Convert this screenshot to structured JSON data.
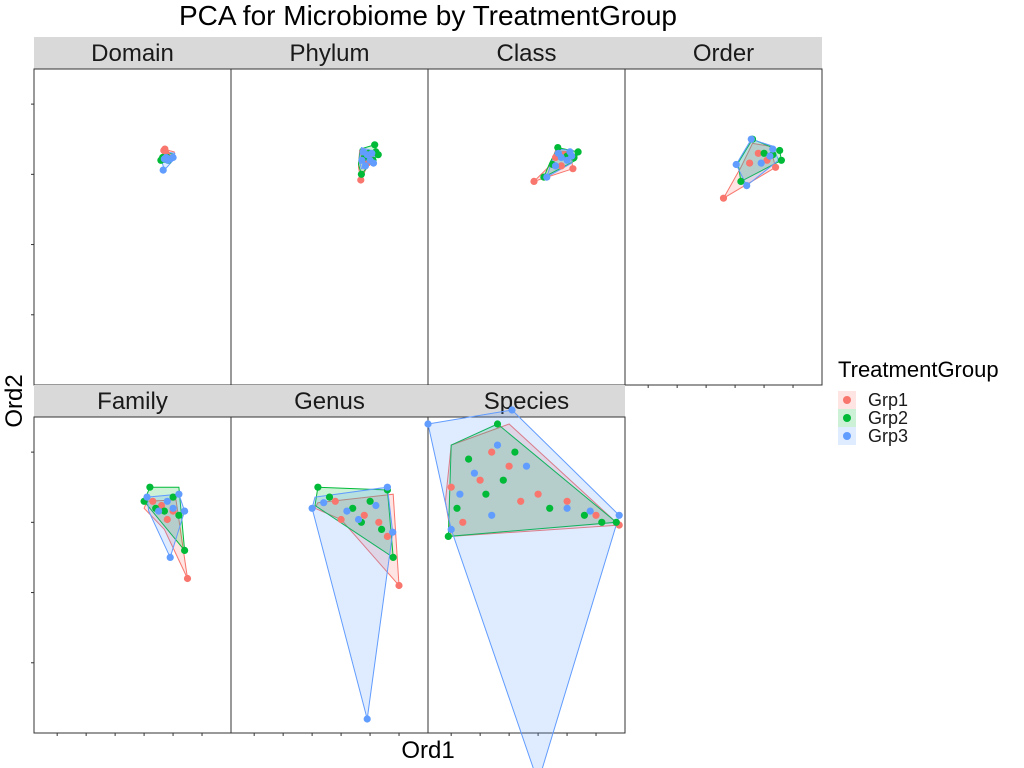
{
  "chart_data": {
    "type": "scatter",
    "title": "PCA for Microbiome by TreatmentGroup",
    "xlabel": "Ord1",
    "ylabel": "Ord2",
    "xlim": [
      -2.4,
      1.0
    ],
    "ylim": [
      -1.6,
      0.65
    ],
    "legend": {
      "title": "TreatmentGroup",
      "placement": "right",
      "entries": [
        {
          "name": "Grp1",
          "color": "#F8766D"
        },
        {
          "name": "Grp2",
          "color": "#00BA38"
        },
        {
          "name": "Grp3",
          "color": "#619CFF"
        }
      ]
    },
    "panels": [
      {
        "name": "Domain",
        "hulls": {
          "Grp1": [
            [
              -0.16,
              0.08
            ],
            [
              0.02,
              0.06
            ],
            [
              0.03,
              0.03
            ],
            [
              -0.14,
              0.0
            ],
            [
              -0.17,
              0.05
            ]
          ],
          "Grp2": [
            [
              -0.22,
              0.01
            ],
            [
              -0.12,
              0.06
            ],
            [
              0.02,
              0.04
            ],
            [
              -0.08,
              -0.02
            ],
            [
              -0.2,
              -0.01
            ]
          ],
          "Grp3": [
            [
              -0.15,
              0.06
            ],
            [
              0.03,
              0.05
            ],
            [
              0.0,
              0.0
            ],
            [
              -0.15,
              -0.07
            ],
            [
              -0.2,
              0.0
            ]
          ]
        },
        "points": {
          "Grp1": [
            [
              -0.14,
              0.08
            ],
            [
              -0.16,
              0.07
            ],
            [
              -0.12,
              0.05
            ],
            [
              -0.1,
              0.03
            ],
            [
              -0.13,
              0.04
            ]
          ],
          "Grp2": [
            [
              -0.21,
              0.0
            ],
            [
              -0.18,
              0.02
            ],
            [
              -0.1,
              0.02
            ],
            [
              -0.08,
              0.0
            ],
            [
              -0.14,
              0.01
            ]
          ],
          "Grp3": [
            [
              -0.17,
              -0.07
            ],
            [
              -0.12,
              0.02
            ],
            [
              -0.05,
              0.01
            ],
            [
              0.0,
              0.02
            ],
            [
              -0.09,
              0.0
            ],
            [
              -0.15,
              0.01
            ]
          ]
        }
      },
      {
        "name": "Phylum",
        "hulls": {
          "Grp1": [
            [
              -0.18,
              0.07
            ],
            [
              0.1,
              0.05
            ],
            [
              0.0,
              0.0
            ],
            [
              -0.16,
              -0.14
            ],
            [
              -0.2,
              -0.05
            ]
          ],
          "Grp2": [
            [
              -0.17,
              0.08
            ],
            [
              0.08,
              0.11
            ],
            [
              0.14,
              0.04
            ],
            [
              -0.15,
              -0.1
            ],
            [
              -0.2,
              -0.03
            ]
          ],
          "Grp3": [
            [
              -0.15,
              0.09
            ],
            [
              0.1,
              0.06
            ],
            [
              0.06,
              -0.02
            ],
            [
              -0.15,
              -0.06
            ],
            [
              -0.19,
              0.0
            ]
          ]
        },
        "points": {
          "Grp1": [
            [
              -0.16,
              -0.14
            ],
            [
              -0.1,
              0.03
            ],
            [
              -0.05,
              -0.02
            ],
            [
              -0.12,
              0.06
            ],
            [
              0.0,
              0.01
            ]
          ],
          "Grp2": [
            [
              0.08,
              0.11
            ],
            [
              0.14,
              0.04
            ],
            [
              -0.15,
              -0.1
            ],
            [
              -0.02,
              0.05
            ],
            [
              0.05,
              0.0
            ],
            [
              -0.1,
              0.02
            ],
            [
              0.1,
              0.06
            ]
          ],
          "Grp3": [
            [
              -0.12,
              0.06
            ],
            [
              -0.05,
              0.04
            ],
            [
              0.0,
              0.0
            ],
            [
              -0.14,
              0.0
            ],
            [
              0.06,
              -0.02
            ],
            [
              -0.08,
              -0.04
            ],
            [
              0.03,
              0.05
            ]
          ]
        }
      },
      {
        "name": "Class",
        "hulls": {
          "Grp1": [
            [
              -0.2,
              0.07
            ],
            [
              0.06,
              0.06
            ],
            [
              0.1,
              -0.06
            ],
            [
              -0.57,
              -0.15
            ],
            [
              -0.3,
              -0.04
            ]
          ],
          "Grp2": [
            [
              -0.16,
              0.09
            ],
            [
              0.19,
              0.06
            ],
            [
              0.15,
              0.0
            ],
            [
              -0.4,
              -0.12
            ],
            [
              -0.3,
              -0.02
            ]
          ],
          "Grp3": [
            [
              -0.18,
              0.08
            ],
            [
              0.1,
              0.07
            ],
            [
              0.08,
              -0.02
            ],
            [
              -0.35,
              -0.12
            ],
            [
              -0.28,
              -0.03
            ]
          ]
        },
        "points": {
          "Grp1": [
            [
              -0.57,
              -0.15
            ],
            [
              0.1,
              -0.06
            ],
            [
              -0.2,
              0.02
            ],
            [
              -0.05,
              0.04
            ],
            [
              -0.1,
              -0.04
            ]
          ],
          "Grp2": [
            [
              0.19,
              0.06
            ],
            [
              -0.4,
              -0.12
            ],
            [
              -0.16,
              0.09
            ],
            [
              0.0,
              0.03
            ],
            [
              0.12,
              0.02
            ],
            [
              -0.25,
              -0.03
            ]
          ],
          "Grp3": [
            [
              -0.35,
              -0.12
            ],
            [
              -0.15,
              0.05
            ],
            [
              0.0,
              0.0
            ],
            [
              0.08,
              0.03
            ],
            [
              -0.1,
              0.02
            ],
            [
              -0.2,
              -0.04
            ],
            [
              0.05,
              0.06
            ]
          ]
        }
      },
      {
        "name": "Order",
        "hulls": {
          "Grp1": [
            [
              -0.2,
              0.12
            ],
            [
              0.1,
              0.1
            ],
            [
              0.2,
              -0.05
            ],
            [
              -0.7,
              -0.27
            ],
            [
              -0.4,
              -0.05
            ]
          ],
          "Grp2": [
            [
              -0.2,
              0.15
            ],
            [
              0.27,
              0.07
            ],
            [
              0.3,
              0.0
            ],
            [
              -0.4,
              -0.15
            ],
            [
              -0.45,
              -0.02
            ]
          ],
          "Grp3": [
            [
              -0.22,
              0.15
            ],
            [
              0.15,
              0.1
            ],
            [
              0.25,
              0.0
            ],
            [
              -0.3,
              -0.18
            ],
            [
              -0.48,
              -0.03
            ]
          ]
        },
        "points": {
          "Grp1": [
            [
              -0.7,
              -0.27
            ],
            [
              0.2,
              -0.05
            ],
            [
              -0.1,
              0.05
            ],
            [
              0.05,
              0.0
            ],
            [
              -0.25,
              -0.02
            ]
          ],
          "Grp2": [
            [
              0.27,
              0.07
            ],
            [
              0.3,
              0.0
            ],
            [
              -0.4,
              -0.15
            ],
            [
              -0.2,
              0.15
            ],
            [
              0.0,
              0.05
            ],
            [
              0.15,
              0.04
            ]
          ],
          "Grp3": [
            [
              -0.3,
              -0.18
            ],
            [
              -0.48,
              -0.03
            ],
            [
              -0.22,
              0.15
            ],
            [
              0.1,
              0.03
            ],
            [
              -0.05,
              -0.02
            ],
            [
              0.15,
              0.08
            ]
          ]
        }
      },
      {
        "name": "Family",
        "hulls": {
          "Grp1": [
            [
              -0.45,
              0.05
            ],
            [
              0.05,
              0.06
            ],
            [
              0.25,
              -0.5
            ],
            [
              -0.15,
              -0.15
            ],
            [
              -0.5,
              0.0
            ]
          ],
          "Grp2": [
            [
              -0.4,
              0.15
            ],
            [
              0.1,
              0.15
            ],
            [
              0.2,
              -0.3
            ],
            [
              -0.5,
              0.05
            ]
          ],
          "Grp3": [
            [
              -0.45,
              0.08
            ],
            [
              0.1,
              0.1
            ],
            [
              0.2,
              -0.02
            ],
            [
              -0.05,
              -0.35
            ],
            [
              -0.42,
              -0.02
            ]
          ]
        },
        "points": {
          "Grp1": [
            [
              0.25,
              -0.5
            ],
            [
              -0.2,
              0.02
            ],
            [
              0.0,
              -0.02
            ],
            [
              -0.35,
              0.05
            ],
            [
              -0.1,
              -0.08
            ]
          ],
          "Grp2": [
            [
              -0.4,
              0.15
            ],
            [
              0.2,
              -0.3
            ],
            [
              -0.5,
              0.05
            ],
            [
              -0.3,
              0.0
            ],
            [
              0.0,
              0.08
            ],
            [
              0.1,
              -0.05
            ],
            [
              -0.15,
              -0.02
            ]
          ],
          "Grp3": [
            [
              -0.05,
              -0.35
            ],
            [
              0.2,
              -0.02
            ],
            [
              0.1,
              0.1
            ],
            [
              -0.45,
              0.08
            ],
            [
              -0.25,
              -0.02
            ],
            [
              0.0,
              0.0
            ],
            [
              -0.1,
              0.05
            ]
          ]
        }
      },
      {
        "name": "Genus",
        "hulls": {
          "Grp1": [
            [
              -0.9,
              0.04
            ],
            [
              0.4,
              0.1
            ],
            [
              0.5,
              -0.55
            ],
            [
              -0.5,
              -0.08
            ],
            [
              -0.95,
              0.0
            ]
          ],
          "Grp2": [
            [
              -0.9,
              0.15
            ],
            [
              0.3,
              0.13
            ],
            [
              0.4,
              -0.35
            ],
            [
              -0.95,
              0.02
            ]
          ],
          "Grp3": [
            [
              -0.95,
              0.08
            ],
            [
              0.3,
              0.15
            ],
            [
              0.39,
              -0.17
            ],
            [
              -0.05,
              -1.5
            ],
            [
              -1.0,
              0.0
            ]
          ]
        },
        "points": {
          "Grp1": [
            [
              0.5,
              -0.55
            ],
            [
              -0.5,
              -0.08
            ],
            [
              -0.6,
              0.05
            ],
            [
              -0.1,
              -0.05
            ],
            [
              0.15,
              -0.1
            ],
            [
              0.3,
              -0.2
            ]
          ],
          "Grp2": [
            [
              -0.9,
              0.15
            ],
            [
              0.3,
              0.13
            ],
            [
              0.4,
              -0.35
            ],
            [
              -0.7,
              0.08
            ],
            [
              -0.3,
              0.0
            ],
            [
              0.0,
              0.05
            ],
            [
              0.2,
              -0.15
            ],
            [
              -0.15,
              -0.1
            ]
          ],
          "Grp3": [
            [
              -0.05,
              -1.5
            ],
            [
              0.39,
              -0.17
            ],
            [
              -1.0,
              0.0
            ],
            [
              0.3,
              0.15
            ],
            [
              -0.8,
              0.04
            ],
            [
              -0.4,
              -0.02
            ],
            [
              0.1,
              0.02
            ],
            [
              -0.2,
              -0.08
            ]
          ]
        }
      },
      {
        "name": "Species",
        "hulls": {
          "Grp1": [
            [
              -2.0,
              0.45
            ],
            [
              -1.0,
              0.6
            ],
            [
              0.9,
              -0.12
            ],
            [
              -2.0,
              -0.2
            ],
            [
              -2.1,
              0.05
            ]
          ],
          "Grp2": [
            [
              -2.0,
              0.45
            ],
            [
              -1.2,
              0.6
            ],
            [
              0.85,
              -0.1
            ],
            [
              -2.05,
              -0.2
            ]
          ],
          "Grp3": [
            [
              -2.4,
              0.6
            ],
            [
              -0.95,
              0.7
            ],
            [
              0.9,
              -0.05
            ],
            [
              -0.5,
              -1.95
            ],
            [
              -2.0,
              -0.15
            ]
          ]
        },
        "points": {
          "Grp1": [
            [
              0.9,
              -0.12
            ],
            [
              -2.0,
              0.15
            ],
            [
              -1.5,
              0.2
            ],
            [
              -1.0,
              0.3
            ],
            [
              -0.5,
              0.1
            ],
            [
              0.0,
              0.05
            ],
            [
              0.5,
              -0.05
            ],
            [
              -1.8,
              -0.1
            ],
            [
              -0.8,
              0.05
            ],
            [
              -1.3,
              0.4
            ]
          ],
          "Grp2": [
            [
              -1.2,
              0.6
            ],
            [
              -2.05,
              -0.2
            ],
            [
              0.85,
              -0.1
            ],
            [
              -1.7,
              0.35
            ],
            [
              -1.4,
              0.1
            ],
            [
              -0.9,
              0.4
            ],
            [
              -0.3,
              0.0
            ],
            [
              0.3,
              -0.05
            ],
            [
              -1.9,
              0.0
            ],
            [
              -1.1,
              0.2
            ],
            [
              0.6,
              -0.1
            ]
          ],
          "Grp3": [
            [
              -2.4,
              0.6
            ],
            [
              -0.95,
              0.7
            ],
            [
              -0.5,
              -1.95
            ],
            [
              0.9,
              -0.05
            ],
            [
              -2.0,
              -0.15
            ],
            [
              -1.6,
              0.25
            ],
            [
              -1.2,
              0.45
            ],
            [
              -0.7,
              0.3
            ],
            [
              0.0,
              0.0
            ],
            [
              0.4,
              -0.02
            ],
            [
              -1.85,
              0.1
            ],
            [
              -1.3,
              -0.05
            ]
          ]
        }
      }
    ]
  }
}
